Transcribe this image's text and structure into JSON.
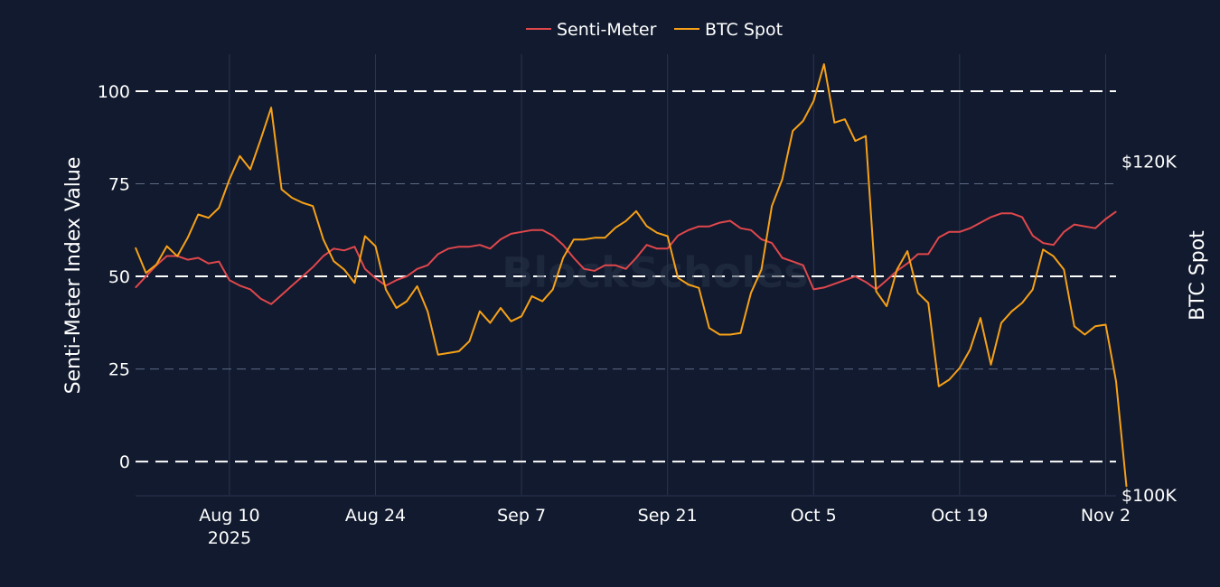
{
  "chart_data": {
    "type": "line",
    "watermark": "BlockScholes",
    "x_axis": {
      "ticks": [
        {
          "date": "2025-08-10",
          "label": "Aug 10",
          "sublabel": "2025"
        },
        {
          "date": "2025-08-24",
          "label": "Aug 24"
        },
        {
          "date": "2025-09-07",
          "label": "Sep 7"
        },
        {
          "date": "2025-09-21",
          "label": "Sep 21"
        },
        {
          "date": "2025-10-05",
          "label": "Oct 5"
        },
        {
          "date": "2025-10-19",
          "label": "Oct 19"
        },
        {
          "date": "2025-11-02",
          "label": "Nov 2"
        }
      ],
      "range": [
        "2025-08-01",
        "2025-11-03"
      ]
    },
    "y_left": {
      "title": "Senti-Meter Index Value",
      "range": [
        -9,
        110
      ],
      "ticks": [
        0,
        25,
        50,
        75,
        100
      ],
      "dashed_grid": [
        0,
        50,
        100
      ]
    },
    "y_right": {
      "title": "BTC Spot",
      "range": [
        100000,
        126400
      ],
      "ticks": [
        {
          "value": 120000,
          "label": "$120K"
        },
        {
          "value": 100000,
          "label": "$100K"
        }
      ]
    },
    "grid": true,
    "legend_position": "top-center",
    "series": [
      {
        "name": "Senti-Meter",
        "color": "#e0474c",
        "axis": "left",
        "points": [
          [
            "2025-08-01",
            47
          ],
          [
            "2025-08-02",
            50
          ],
          [
            "2025-08-03",
            53
          ],
          [
            "2025-08-04",
            55.5
          ],
          [
            "2025-08-05",
            55.5
          ],
          [
            "2025-08-06",
            54.5
          ],
          [
            "2025-08-07",
            55
          ],
          [
            "2025-08-08",
            53.5
          ],
          [
            "2025-08-09",
            54
          ],
          [
            "2025-08-10",
            49
          ],
          [
            "2025-08-11",
            47.5
          ],
          [
            "2025-08-12",
            46.5
          ],
          [
            "2025-08-13",
            44
          ],
          [
            "2025-08-14",
            42.5
          ],
          [
            "2025-08-15",
            45
          ],
          [
            "2025-08-16",
            47.5
          ],
          [
            "2025-08-17",
            50
          ],
          [
            "2025-08-18",
            52.5
          ],
          [
            "2025-08-19",
            55.5
          ],
          [
            "2025-08-20",
            57.5
          ],
          [
            "2025-08-21",
            57
          ],
          [
            "2025-08-22",
            58
          ],
          [
            "2025-08-23",
            52
          ],
          [
            "2025-08-24",
            49.5
          ],
          [
            "2025-08-25",
            47.5
          ],
          [
            "2025-08-26",
            49
          ],
          [
            "2025-08-27",
            50
          ],
          [
            "2025-08-28",
            52
          ],
          [
            "2025-08-29",
            53
          ],
          [
            "2025-08-30",
            56
          ],
          [
            "2025-08-31",
            57.5
          ],
          [
            "2025-09-01",
            58
          ],
          [
            "2025-09-02",
            58
          ],
          [
            "2025-09-03",
            58.5
          ],
          [
            "2025-09-04",
            57.5
          ],
          [
            "2025-09-05",
            60
          ],
          [
            "2025-09-06",
            61.5
          ],
          [
            "2025-09-07",
            62
          ],
          [
            "2025-09-08",
            62.5
          ],
          [
            "2025-09-09",
            62.5
          ],
          [
            "2025-09-10",
            61
          ],
          [
            "2025-09-11",
            58.5
          ],
          [
            "2025-09-12",
            55
          ],
          [
            "2025-09-13",
            52
          ],
          [
            "2025-09-14",
            51.5
          ],
          [
            "2025-09-15",
            53
          ],
          [
            "2025-09-16",
            53
          ],
          [
            "2025-09-17",
            52
          ],
          [
            "2025-09-18",
            55
          ],
          [
            "2025-09-19",
            58.5
          ],
          [
            "2025-09-20",
            57.5
          ],
          [
            "2025-09-21",
            57.5
          ],
          [
            "2025-09-22",
            61
          ],
          [
            "2025-09-23",
            62.5
          ],
          [
            "2025-09-24",
            63.5
          ],
          [
            "2025-09-25",
            63.5
          ],
          [
            "2025-09-26",
            64.5
          ],
          [
            "2025-09-27",
            65
          ],
          [
            "2025-09-28",
            63
          ],
          [
            "2025-09-29",
            62.5
          ],
          [
            "2025-09-30",
            60
          ],
          [
            "2025-10-01",
            59
          ],
          [
            "2025-10-02",
            55
          ],
          [
            "2025-10-03",
            54
          ],
          [
            "2025-10-04",
            53
          ],
          [
            "2025-10-05",
            46.5
          ],
          [
            "2025-10-06",
            47
          ],
          [
            "2025-10-07",
            48
          ],
          [
            "2025-10-08",
            49
          ],
          [
            "2025-10-09",
            50
          ],
          [
            "2025-10-10",
            48.5
          ],
          [
            "2025-10-11",
            46.5
          ],
          [
            "2025-10-12",
            49
          ],
          [
            "2025-10-13",
            51.5
          ],
          [
            "2025-10-14",
            53.5
          ],
          [
            "2025-10-15",
            56
          ],
          [
            "2025-10-16",
            56
          ],
          [
            "2025-10-17",
            60.5
          ],
          [
            "2025-10-18",
            62
          ],
          [
            "2025-10-19",
            62
          ],
          [
            "2025-10-20",
            63
          ],
          [
            "2025-10-21",
            64.5
          ],
          [
            "2025-10-22",
            66
          ],
          [
            "2025-10-23",
            67
          ],
          [
            "2025-10-24",
            67
          ],
          [
            "2025-10-25",
            66
          ],
          [
            "2025-10-26",
            61
          ],
          [
            "2025-10-27",
            59
          ],
          [
            "2025-10-28",
            58.5
          ],
          [
            "2025-10-29",
            62
          ],
          [
            "2025-10-30",
            64
          ],
          [
            "2025-10-31",
            63.5
          ],
          [
            "2025-11-01",
            63
          ],
          [
            "2025-11-02",
            65.5
          ],
          [
            "2025-11-03",
            67.5
          ]
        ]
      },
      {
        "name": "BTC Spot",
        "color": "#f7a117",
        "axis": "right",
        "points": [
          [
            "2025-08-01",
            114800
          ],
          [
            "2025-08-02",
            113300
          ],
          [
            "2025-08-03",
            113800
          ],
          [
            "2025-08-04",
            114900
          ],
          [
            "2025-08-05",
            114300
          ],
          [
            "2025-08-06",
            115400
          ],
          [
            "2025-08-07",
            116800
          ],
          [
            "2025-08-08",
            116600
          ],
          [
            "2025-08-09",
            117200
          ],
          [
            "2025-08-10",
            118900
          ],
          [
            "2025-08-11",
            120300
          ],
          [
            "2025-08-12",
            119500
          ],
          [
            "2025-08-13",
            121300
          ],
          [
            "2025-08-14",
            123200
          ],
          [
            "2025-08-15",
            118300
          ],
          [
            "2025-08-16",
            117800
          ],
          [
            "2025-08-17",
            117500
          ],
          [
            "2025-08-18",
            117300
          ],
          [
            "2025-08-19",
            115300
          ],
          [
            "2025-08-20",
            114000
          ],
          [
            "2025-08-21",
            113500
          ],
          [
            "2025-08-22",
            112700
          ],
          [
            "2025-08-23",
            115500
          ],
          [
            "2025-08-24",
            114900
          ],
          [
            "2025-08-25",
            112300
          ],
          [
            "2025-08-26",
            111200
          ],
          [
            "2025-08-27",
            111600
          ],
          [
            "2025-08-28",
            112500
          ],
          [
            "2025-08-29",
            111000
          ],
          [
            "2025-08-30",
            108400
          ],
          [
            "2025-08-31",
            108500
          ],
          [
            "2025-09-01",
            108600
          ],
          [
            "2025-09-02",
            109200
          ],
          [
            "2025-09-03",
            111000
          ],
          [
            "2025-09-04",
            110300
          ],
          [
            "2025-09-05",
            111200
          ],
          [
            "2025-09-06",
            110400
          ],
          [
            "2025-09-07",
            110700
          ],
          [
            "2025-09-08",
            111900
          ],
          [
            "2025-09-09",
            111600
          ],
          [
            "2025-09-10",
            112300
          ],
          [
            "2025-09-11",
            114200
          ],
          [
            "2025-09-12",
            115300
          ],
          [
            "2025-09-13",
            115300
          ],
          [
            "2025-09-14",
            115400
          ],
          [
            "2025-09-15",
            115400
          ],
          [
            "2025-09-16",
            116000
          ],
          [
            "2025-09-17",
            116400
          ],
          [
            "2025-09-18",
            117000
          ],
          [
            "2025-09-19",
            116100
          ],
          [
            "2025-09-20",
            115700
          ],
          [
            "2025-09-21",
            115500
          ],
          [
            "2025-09-22",
            113000
          ],
          [
            "2025-09-23",
            112600
          ],
          [
            "2025-09-24",
            112400
          ],
          [
            "2025-09-25",
            110000
          ],
          [
            "2025-09-26",
            109600
          ],
          [
            "2025-09-27",
            109600
          ],
          [
            "2025-09-28",
            109700
          ],
          [
            "2025-09-29",
            112100
          ],
          [
            "2025-09-30",
            113500
          ],
          [
            "2025-10-01",
            117300
          ],
          [
            "2025-10-02",
            118900
          ],
          [
            "2025-10-03",
            121800
          ],
          [
            "2025-10-04",
            122400
          ],
          [
            "2025-10-05",
            123600
          ],
          [
            "2025-10-06",
            125800
          ],
          [
            "2025-10-07",
            122300
          ],
          [
            "2025-10-08",
            122500
          ],
          [
            "2025-10-09",
            121200
          ],
          [
            "2025-10-10",
            121500
          ],
          [
            "2025-10-11",
            112200
          ],
          [
            "2025-10-12",
            111300
          ],
          [
            "2025-10-13",
            113500
          ],
          [
            "2025-10-14",
            114600
          ],
          [
            "2025-10-15",
            112100
          ],
          [
            "2025-10-16",
            111500
          ],
          [
            "2025-10-17",
            106500
          ],
          [
            "2025-10-18",
            106900
          ],
          [
            "2025-10-19",
            107600
          ],
          [
            "2025-10-20",
            108700
          ],
          [
            "2025-10-21",
            110600
          ],
          [
            "2025-10-22",
            107800
          ],
          [
            "2025-10-23",
            110300
          ],
          [
            "2025-10-24",
            111000
          ],
          [
            "2025-10-25",
            111500
          ],
          [
            "2025-10-26",
            112300
          ],
          [
            "2025-10-27",
            114700
          ],
          [
            "2025-10-28",
            114300
          ],
          [
            "2025-10-29",
            113500
          ],
          [
            "2025-10-30",
            110100
          ],
          [
            "2025-10-31",
            109600
          ],
          [
            "2025-11-01",
            110100
          ],
          [
            "2025-11-02",
            110200
          ],
          [
            "2025-11-03",
            106800
          ],
          [
            "2025-11-04",
            100500
          ]
        ]
      }
    ]
  }
}
